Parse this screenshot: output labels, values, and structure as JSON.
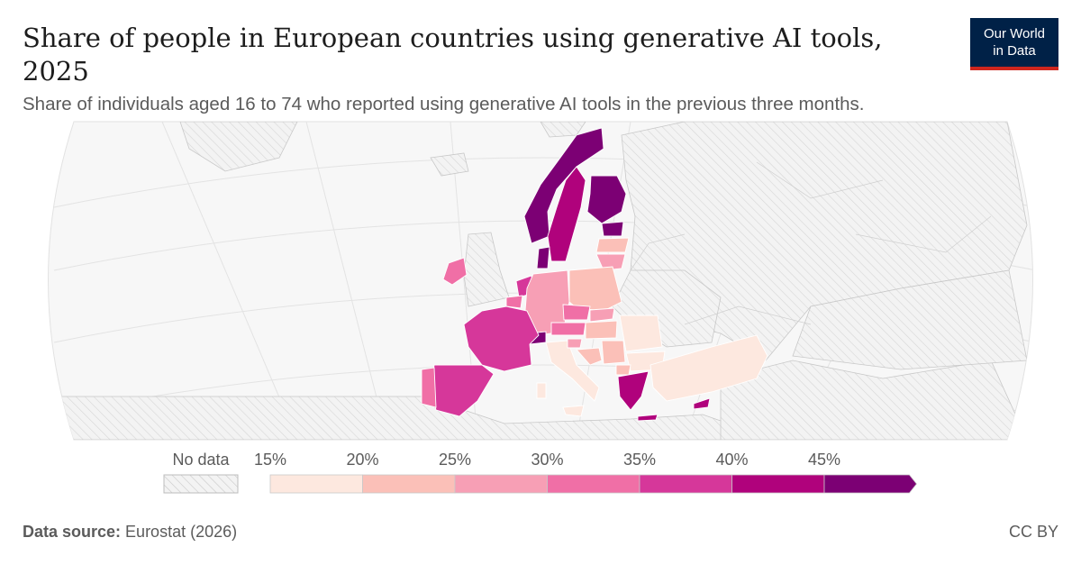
{
  "header": {
    "title": "Share of people in European countries using generative AI tools, 2025",
    "subtitle": "Share of individuals aged 16 to 74 who reported using generative AI tools in the previous three months.",
    "logo_line1": "Our World",
    "logo_line2": "in Data"
  },
  "footer": {
    "source_label": "Data source:",
    "source_text": " Eurostat (2026)",
    "license": "CC BY"
  },
  "legend": {
    "no_data_label": "No data",
    "ticks": [
      "15%",
      "20%",
      "25%",
      "30%",
      "35%",
      "40%",
      "45%"
    ],
    "colors": [
      "#fde8df",
      "#fbc0b8",
      "#f79fb5",
      "#f06fa6",
      "#d6379a",
      "#b0027c",
      "#7c0074"
    ]
  },
  "chart_data": {
    "type": "choropleth",
    "region": "Europe",
    "year": 2025,
    "unit": "%",
    "bins": [
      {
        "range": [
          15,
          20
        ],
        "color": "#fde8df"
      },
      {
        "range": [
          20,
          25
        ],
        "color": "#fbc0b8"
      },
      {
        "range": [
          25,
          30
        ],
        "color": "#f79fb5"
      },
      {
        "range": [
          30,
          35
        ],
        "color": "#f06fa6"
      },
      {
        "range": [
          35,
          40
        ],
        "color": "#d6379a"
      },
      {
        "range": [
          40,
          45
        ],
        "color": "#b0027c"
      },
      {
        "range": [
          45,
          50
        ],
        "color": "#7c0074"
      }
    ],
    "countries": [
      {
        "name": "Norway",
        "bin": 6
      },
      {
        "name": "Sweden",
        "bin": 5
      },
      {
        "name": "Finland",
        "bin": 6
      },
      {
        "name": "Denmark",
        "bin": 6
      },
      {
        "name": "Estonia",
        "bin": 6
      },
      {
        "name": "Latvia",
        "bin": 2
      },
      {
        "name": "Lithuania",
        "bin": 3
      },
      {
        "name": "Ireland",
        "bin": 4
      },
      {
        "name": "Netherlands",
        "bin": 5
      },
      {
        "name": "Belgium",
        "bin": 4
      },
      {
        "name": "Luxembourg",
        "bin": 4
      },
      {
        "name": "Germany",
        "bin": 3
      },
      {
        "name": "Poland",
        "bin": 1
      },
      {
        "name": "Czechia",
        "bin": 4
      },
      {
        "name": "Slovakia",
        "bin": 3
      },
      {
        "name": "Austria",
        "bin": 4
      },
      {
        "name": "Switzerland",
        "bin": 6
      },
      {
        "name": "Hungary",
        "bin": 2
      },
      {
        "name": "Romania",
        "bin": 0
      },
      {
        "name": "Bulgaria",
        "bin": 0
      },
      {
        "name": "France",
        "bin": 4
      },
      {
        "name": "Spain",
        "bin": 4
      },
      {
        "name": "Portugal",
        "bin": 3
      },
      {
        "name": "Italy",
        "bin": 0
      },
      {
        "name": "Slovenia",
        "bin": 3
      },
      {
        "name": "Croatia",
        "bin": 2
      },
      {
        "name": "Serbia",
        "bin": 1
      },
      {
        "name": "Bosnia and Herzegovina",
        "bin": 1
      },
      {
        "name": "Montenegro",
        "bin": 0
      },
      {
        "name": "Albania",
        "bin": 0
      },
      {
        "name": "North Macedonia",
        "bin": 2
      },
      {
        "name": "Greece",
        "bin": 5
      },
      {
        "name": "Turkey",
        "bin": 0
      },
      {
        "name": "Cyprus",
        "bin": 5
      },
      {
        "name": "Malta",
        "bin": 0
      }
    ]
  }
}
